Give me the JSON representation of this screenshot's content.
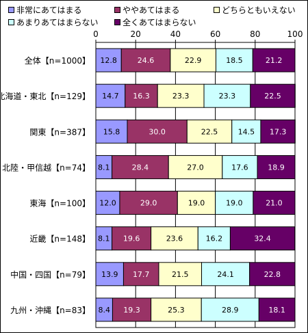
{
  "chart_data": {
    "type": "bar",
    "orientation": "horizontal",
    "stacked": true,
    "categories": [
      "全体【n=1000】",
      "北海道・東北【n=129】",
      "関東【n=387】",
      "北陸・甲信越【n=74】",
      "東海【n=100】",
      "近畿【n=148】",
      "中国・四国【n=79】",
      "九州・沖縄【n=83】"
    ],
    "series": [
      {
        "name": "非常にあてはまる",
        "color": "#9999ff",
        "values": [
          12.8,
          14.7,
          15.8,
          8.1,
          12.0,
          8.1,
          13.9,
          8.4
        ]
      },
      {
        "name": "ややあてはまる",
        "color": "#993366",
        "values": [
          24.6,
          16.3,
          30.0,
          28.4,
          29.0,
          19.6,
          17.7,
          19.3
        ]
      },
      {
        "name": "どちらともいえない",
        "color": "#ffffcc",
        "values": [
          22.9,
          23.3,
          22.5,
          27.0,
          19.0,
          23.6,
          21.5,
          25.3
        ]
      },
      {
        "name": "あまりあてはまらない",
        "color": "#ccffff",
        "values": [
          18.5,
          23.3,
          14.5,
          17.6,
          19.0,
          16.2,
          24.1,
          28.9
        ]
      },
      {
        "name": "全くあてはまらない",
        "color": "#660066",
        "values": [
          21.2,
          22.5,
          17.3,
          18.9,
          21.0,
          32.4,
          22.8,
          18.1
        ]
      }
    ],
    "xlim": [
      0,
      100
    ],
    "xticks": [
      0,
      20,
      40,
      60,
      80,
      100
    ],
    "grid": true,
    "legend_position": "top"
  }
}
